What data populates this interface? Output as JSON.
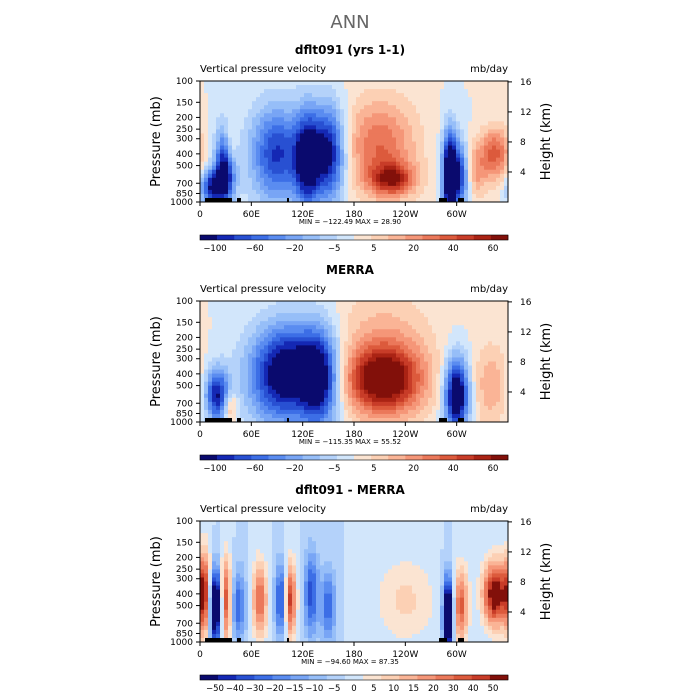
{
  "figure_title": "ANN",
  "panels": [
    {
      "title": "dflt091 (yrs 1-1)",
      "left_label": "Vertical pressure velocity",
      "right_label": "mb/day",
      "stats": "MIN = −122.49   MAX =  28.90",
      "colorbar_ticks": [
        "−100",
        "−60",
        "−20",
        "−5",
        "5",
        "20",
        "40",
        "60"
      ],
      "colorbar_colors": [
        "#0a0a6e",
        "#1428b4",
        "#2850d2",
        "#3c6ee6",
        "#5a8cf0",
        "#78a5f5",
        "#96bef8",
        "#b4d2fa",
        "#d2e6fb",
        "#fbe4d2",
        "#fcd0b4",
        "#fab496",
        "#f59678",
        "#eb785a",
        "#dc5a3c",
        "#c83c28",
        "#aa2314",
        "#82100a"
      ],
      "chart_data": {
        "type": "heatmap",
        "x_label": "",
        "y_left_label": "Pressure (mb)",
        "y_right_label": "Height (km)",
        "x_ticks": [
          "0",
          "60E",
          "120E",
          "180",
          "120W",
          "60W"
        ],
        "y_ticks": [
          "100",
          "150",
          "200",
          "250",
          "300",
          "400",
          "500",
          "700",
          "850",
          "1000"
        ],
        "y2_ticks": [
          "16",
          "12",
          "8",
          "4"
        ],
        "min": -122.49,
        "max": 28.9
      }
    },
    {
      "title": "MERRA",
      "left_label": "Vertical pressure velocity",
      "right_label": "mb/day",
      "stats": "MIN = −115.35   MAX =  55.52",
      "colorbar_ticks": [
        "−100",
        "−60",
        "−20",
        "−5",
        "5",
        "20",
        "40",
        "60"
      ],
      "colorbar_colors": [
        "#0a0a6e",
        "#1428b4",
        "#2850d2",
        "#3c6ee6",
        "#5a8cf0",
        "#78a5f5",
        "#96bef8",
        "#b4d2fa",
        "#d2e6fb",
        "#fbe4d2",
        "#fcd0b4",
        "#fab496",
        "#f59678",
        "#eb785a",
        "#dc5a3c",
        "#c83c28",
        "#aa2314",
        "#82100a"
      ],
      "chart_data": {
        "type": "heatmap",
        "x_label": "",
        "y_left_label": "Pressure (mb)",
        "y_right_label": "Height (km)",
        "x_ticks": [
          "0",
          "60E",
          "120E",
          "180",
          "120W",
          "60W"
        ],
        "y_ticks": [
          "100",
          "150",
          "200",
          "250",
          "300",
          "400",
          "500",
          "700",
          "850",
          "1000"
        ],
        "y2_ticks": [
          "16",
          "12",
          "8",
          "4"
        ],
        "min": -115.35,
        "max": 55.52
      }
    },
    {
      "title": "dflt091 - MERRA",
      "left_label": "Vertical pressure velocity",
      "right_label": "mb/day",
      "stats": "MIN = −94.60   MAX =  87.35",
      "colorbar_ticks": [
        "−50",
        "−40",
        "−30",
        "−20",
        "−15",
        "−10",
        "−5",
        "0",
        "5",
        "10",
        "15",
        "20",
        "30",
        "40",
        "50"
      ],
      "colorbar_colors": [
        "#0a0a6e",
        "#1428b4",
        "#2850d2",
        "#3c6ee6",
        "#5a8cf0",
        "#78a5f5",
        "#96bef8",
        "#b4d2fa",
        "#d2e6fb",
        "#fbe4d2",
        "#fcd0b4",
        "#fab496",
        "#f59678",
        "#eb785a",
        "#dc5a3c",
        "#c83c28",
        "#82100a"
      ],
      "chart_data": {
        "type": "heatmap",
        "x_label": "",
        "y_left_label": "Pressure (mb)",
        "y_right_label": "Height (km)",
        "x_ticks": [
          "0",
          "60E",
          "120E",
          "180",
          "120W",
          "60W"
        ],
        "y_ticks": [
          "100",
          "150",
          "200",
          "250",
          "300",
          "400",
          "500",
          "700",
          "850",
          "1000"
        ],
        "y2_ticks": [
          "16",
          "12",
          "8",
          "4"
        ],
        "min": -94.6,
        "max": 87.35
      }
    }
  ]
}
